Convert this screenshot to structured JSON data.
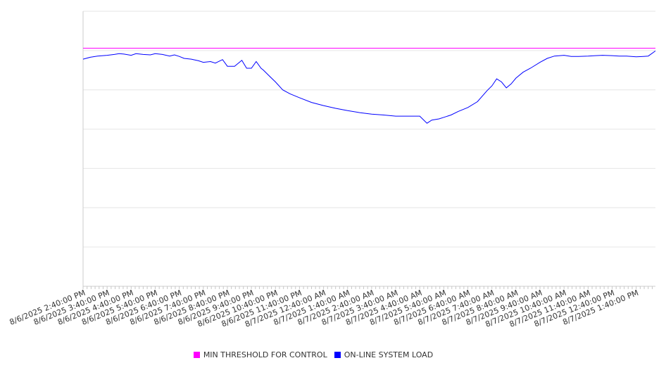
{
  "chart_data": {
    "type": "line",
    "title": "",
    "xlabel": "",
    "ylabel": "",
    "ylim": [
      0,
      7
    ],
    "grid": true,
    "legend_position": "bottom",
    "x_tick_labels": [
      "8/6/2025 2:40:00 PM",
      "8/6/2025 3:40:00 PM",
      "8/6/2025 4:40:00 PM",
      "8/6/2025 5:40:00 PM",
      "8/6/2025 6:40:00 PM",
      "8/6/2025 7:40:00 PM",
      "8/6/2025 8:40:00 PM",
      "8/6/2025 9:40:00 PM",
      "8/6/2025 10:40:00 PM",
      "8/6/2025 11:40:00 PM",
      "8/7/2025 12:40:00 AM",
      "8/7/2025 1:40:00 AM",
      "8/7/2025 2:40:00 AM",
      "8/7/2025 3:40:00 AM",
      "8/7/2025 4:40:00 AM",
      "8/7/2025 5:40:00 AM",
      "8/7/2025 6:40:00 AM",
      "8/7/2025 7:40:00 AM",
      "8/7/2025 8:40:00 AM",
      "8/7/2025 9:40:00 AM",
      "8/7/2025 10:40:00 AM",
      "8/7/2025 11:40:00 AM",
      "8/7/2025 12:40:00 PM",
      "8/7/2025 1:40:00 PM"
    ],
    "x_hours": [
      0,
      1,
      2,
      3,
      4,
      5,
      6,
      7,
      8,
      9,
      10,
      11,
      12,
      13,
      14,
      15,
      16,
      17,
      18,
      19,
      20,
      21,
      22,
      23
    ],
    "x_range": [
      0,
      23.8
    ],
    "series": [
      {
        "name": "MIN THRESHOLD FOR CONTROL",
        "color": "#ff00ff",
        "x": [
          0,
          23.8
        ],
        "y": [
          6.06,
          6.06
        ]
      },
      {
        "name": "ON-LINE SYSTEM LOAD",
        "color": "#0000ff",
        "x": [
          0,
          0.3,
          0.6,
          1.0,
          1.3,
          1.5,
          1.7,
          2.0,
          2.2,
          2.5,
          2.8,
          3.0,
          3.3,
          3.6,
          3.8,
          4.0,
          4.2,
          4.5,
          4.8,
          5.0,
          5.3,
          5.5,
          5.8,
          6.0,
          6.3,
          6.6,
          6.8,
          7.0,
          7.2,
          7.4,
          7.5,
          7.7,
          8.0,
          8.3,
          8.6,
          9.0,
          9.5,
          10.0,
          10.5,
          11.0,
          11.5,
          12.0,
          12.5,
          13.0,
          13.5,
          14.0,
          14.3,
          14.5,
          14.8,
          15.0,
          15.3,
          15.6,
          16.0,
          16.4,
          16.8,
          17.0,
          17.2,
          17.4,
          17.6,
          17.8,
          18.0,
          18.3,
          18.6,
          19.0,
          19.3,
          19.6,
          20.0,
          20.3,
          20.6,
          21.0,
          21.3,
          21.6,
          22.0,
          22.3,
          22.6,
          23.0,
          23.3,
          23.5,
          23.8
        ],
        "y": [
          5.78,
          5.83,
          5.86,
          5.88,
          5.9,
          5.92,
          5.91,
          5.88,
          5.92,
          5.9,
          5.89,
          5.92,
          5.9,
          5.86,
          5.89,
          5.85,
          5.8,
          5.78,
          5.74,
          5.7,
          5.72,
          5.68,
          5.77,
          5.6,
          5.6,
          5.75,
          5.55,
          5.55,
          5.72,
          5.55,
          5.5,
          5.38,
          5.2,
          5.0,
          4.9,
          4.8,
          4.68,
          4.6,
          4.53,
          4.47,
          4.42,
          4.38,
          4.36,
          4.33,
          4.33,
          4.33,
          4.15,
          4.23,
          4.26,
          4.3,
          4.36,
          4.45,
          4.55,
          4.7,
          4.98,
          5.1,
          5.28,
          5.2,
          5.05,
          5.15,
          5.3,
          5.45,
          5.55,
          5.7,
          5.8,
          5.86,
          5.88,
          5.85,
          5.85,
          5.86,
          5.87,
          5.88,
          5.87,
          5.86,
          5.86,
          5.84,
          5.85,
          5.86,
          5.99
        ]
      }
    ]
  }
}
